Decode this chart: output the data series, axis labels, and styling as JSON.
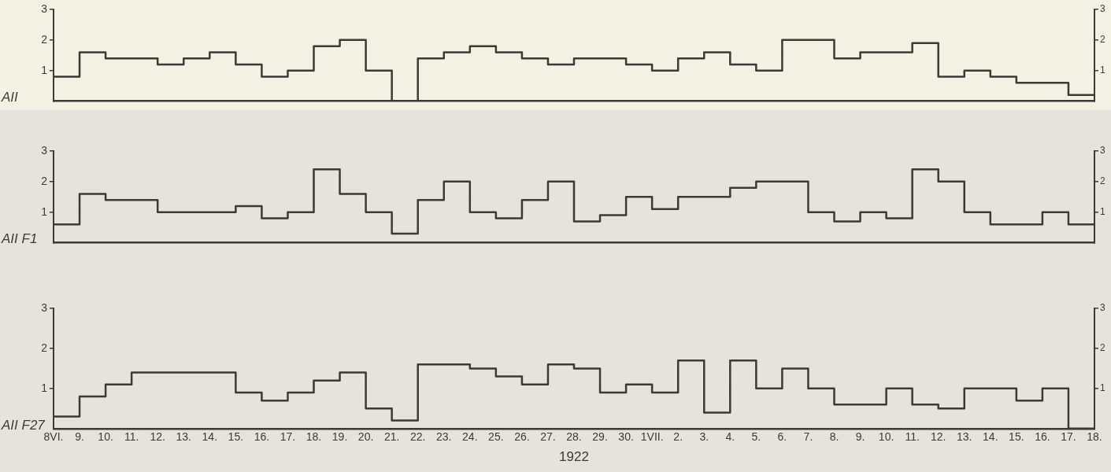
{
  "chart_data": [
    {
      "type": "step",
      "ylabel": "AII",
      "color": "#3a3a36",
      "tick_labels": "y",
      "categories": [
        null,
        null,
        null,
        null,
        null,
        null,
        null,
        null,
        null,
        null,
        null,
        null,
        null,
        null,
        null,
        null,
        null,
        null,
        null,
        null,
        null,
        null,
        null,
        null,
        null,
        null,
        null,
        null,
        null,
        null,
        null,
        null,
        null,
        null,
        null,
        null,
        null,
        null,
        null,
        null,
        null
      ],
      "values": [
        0.8,
        1.6,
        1.4,
        1.4,
        1.2,
        1.4,
        1.6,
        1.2,
        0.8,
        1.0,
        1.8,
        2.0,
        1.0,
        0,
        1.4,
        1.6,
        1.8,
        1.6,
        1.4,
        1.2,
        1.4,
        1.4,
        1.2,
        1.0,
        1.4,
        1.6,
        1.2,
        1.0,
        2.0,
        2.0,
        1.4,
        1.6,
        1.6,
        1.9,
        0.8,
        1.0,
        0.8,
        0.6,
        0.6,
        0.2,
        0.2
      ],
      "ylim": [
        0,
        3
      ],
      "yticks": [
        1,
        2,
        3
      ],
      "y2lim": [
        0,
        3
      ],
      "y2ticks": [
        1,
        2,
        3
      ]
    },
    {
      "type": "step",
      "ylabel": "AII F1",
      "color": "#3a3a36",
      "tick_labels": "y",
      "categories": [
        null,
        null,
        null,
        null,
        null,
        null,
        null,
        null,
        null,
        null,
        null,
        null,
        null,
        null,
        null,
        null,
        null,
        null,
        null,
        null,
        null,
        null,
        null,
        null,
        null,
        null,
        null,
        null,
        null,
        null,
        null,
        null,
        null,
        null,
        null,
        null,
        null,
        null,
        null,
        null,
        null
      ],
      "values": [
        0.6,
        1.6,
        1.4,
        1.4,
        1.0,
        1.0,
        1.0,
        1.2,
        0.8,
        1.0,
        2.4,
        1.6,
        1.0,
        0.3,
        1.4,
        2.0,
        1.0,
        0.8,
        1.4,
        2.0,
        0.7,
        0.9,
        1.5,
        1.1,
        1.5,
        1.5,
        1.8,
        2.0,
        2.0,
        1.0,
        0.7,
        1.0,
        0.8,
        2.4,
        2.0,
        1.0,
        0.6,
        0.6,
        1.0,
        0.6,
        0.6
      ],
      "ylim": [
        0,
        3
      ],
      "yticks": [
        1,
        2,
        3
      ],
      "y2lim": [
        0,
        3
      ],
      "y2ticks": [
        1,
        2,
        3
      ]
    },
    {
      "type": "step",
      "ylabel": "AII F27",
      "xlabel": "1922",
      "color": "#3a3a36",
      "categories": [
        "8VI.",
        "9.",
        "10.",
        "11.",
        "12.",
        "13.",
        "14.",
        "15.",
        "16.",
        "17.",
        "18.",
        "19.",
        "20.",
        "21.",
        "22.",
        "23.",
        "24.",
        "25.",
        "26.",
        "27.",
        "28.",
        "29.",
        "30.",
        "1VII.",
        "2.",
        "3.",
        "4.",
        "5.",
        "6.",
        "7.",
        "8.",
        "9.",
        "10.",
        "11.",
        "12.",
        "13.",
        "14.",
        "15.",
        "16.",
        "17.",
        "18."
      ],
      "values": [
        0.3,
        0.8,
        1.1,
        1.4,
        1.4,
        1.4,
        1.4,
        0.9,
        0.7,
        0.9,
        1.2,
        1.4,
        0.5,
        0.2,
        1.6,
        1.6,
        1.5,
        1.3,
        1.1,
        1.6,
        1.5,
        0.9,
        1.1,
        0.9,
        1.7,
        0.4,
        1.7,
        1.0,
        1.5,
        1.0,
        0.6,
        0.6,
        1.0,
        0.6,
        0.5,
        1.0,
        1.0,
        0.7,
        1.0,
        0,
        0
      ],
      "ylim": [
        0,
        3
      ],
      "yticks": [
        1,
        2,
        3
      ],
      "y2lim": [
        0,
        3
      ],
      "y2ticks": [
        1,
        2,
        3
      ]
    }
  ]
}
